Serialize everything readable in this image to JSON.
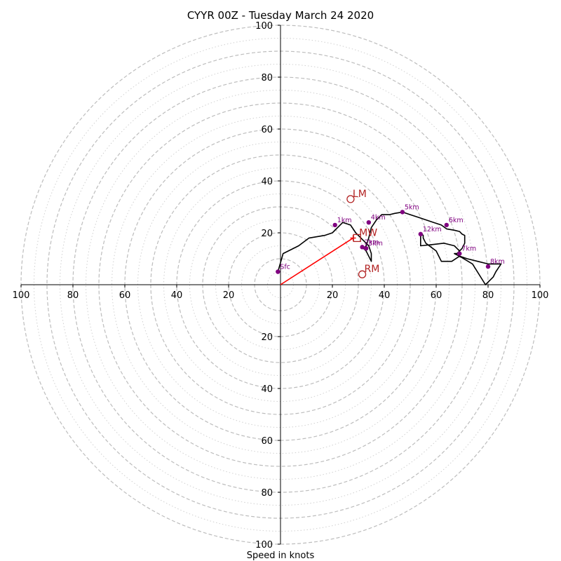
{
  "chart_data": {
    "type": "scatter",
    "title": "CYYR 00Z - Tuesday March 24 2020",
    "xlabel": "Speed in knots",
    "ylabel": "",
    "xlim": [
      -100,
      100
    ],
    "ylim": [
      -100,
      100
    ],
    "rings": {
      "major": [
        10,
        20,
        30,
        40,
        50,
        60,
        70,
        80,
        90,
        100
      ],
      "minor": [
        5,
        15,
        25,
        35,
        45,
        55,
        65,
        75,
        85,
        95
      ]
    },
    "x_ticks": [
      "100",
      "80",
      "60",
      "40",
      "20",
      "20",
      "40",
      "60",
      "80",
      "100"
    ],
    "y_ticks": [
      "100",
      "80",
      "60",
      "40",
      "20",
      "20",
      "40",
      "60",
      "80",
      "100"
    ],
    "x_tick_values": [
      -100,
      -80,
      -60,
      -40,
      -20,
      20,
      40,
      60,
      80,
      100
    ],
    "y_tick_values": [
      100,
      80,
      60,
      40,
      20,
      -20,
      -40,
      -60,
      -80,
      -100
    ],
    "colors": {
      "ring": "#bdbdbd",
      "minor_ring": "#d0d0d0",
      "hodograph": "#000000",
      "height_points": "#800080",
      "motion": "#b22222",
      "shear_vector": "#ff0000"
    },
    "hodograph": {
      "u": [
        -1,
        1,
        7,
        11,
        17,
        20,
        22,
        24,
        27,
        29,
        31,
        33,
        34,
        35,
        35,
        34,
        33,
        32,
        33,
        34,
        35,
        37,
        39,
        42,
        44,
        47,
        50,
        53,
        56,
        59,
        62,
        64,
        67,
        69,
        70,
        71,
        71,
        70,
        69,
        68,
        67,
        69,
        72,
        76,
        80,
        82,
        85,
        83,
        82,
        80,
        79,
        74,
        69,
        66,
        62,
        60,
        56,
        55,
        55,
        54,
        54,
        59,
        63,
        67,
        68,
        69
      ],
      "v": [
        5,
        12,
        15,
        18,
        19,
        20,
        22,
        24,
        23,
        20,
        18,
        16,
        15,
        12,
        9,
        11,
        13,
        14,
        15,
        18,
        22,
        25,
        27,
        27,
        27.5,
        28,
        27,
        26,
        25,
        24,
        23,
        21.5,
        21,
        20.5,
        19.5,
        19,
        16,
        14,
        13,
        12,
        12,
        11,
        10,
        9,
        8,
        8,
        8,
        5,
        3,
        1,
        0,
        8,
        11,
        9,
        9,
        13,
        16,
        18,
        19,
        20,
        15,
        15.5,
        16,
        15,
        14,
        13
      ]
    },
    "height_points": [
      {
        "label": "Sfc",
        "u": -1,
        "v": 5
      },
      {
        "label": "1km",
        "u": 21,
        "v": 23
      },
      {
        "label": "2km",
        "u": 31.5,
        "v": 14.5
      },
      {
        "label": "3km",
        "u": 33,
        "v": 14
      },
      {
        "label": "4km",
        "u": 34,
        "v": 24
      },
      {
        "label": "5km",
        "u": 47,
        "v": 28
      },
      {
        "label": "6km",
        "u": 64,
        "v": 23
      },
      {
        "label": "7km",
        "u": 69,
        "v": 12
      },
      {
        "label": "8km",
        "u": 80,
        "v": 7
      },
      {
        "label": "12km",
        "u": 54,
        "v": 19.5
      }
    ],
    "storm_motion": [
      {
        "label": "LM",
        "u": 27,
        "v": 33,
        "marker": "circle"
      },
      {
        "label": "MW",
        "u": 29.5,
        "v": 18,
        "marker": "square"
      },
      {
        "label": "RM",
        "u": 31.5,
        "v": 4,
        "marker": "circle"
      }
    ],
    "shear_vector": {
      "u0": 0,
      "v0": 0,
      "u1": 28,
      "v1": 18
    }
  }
}
